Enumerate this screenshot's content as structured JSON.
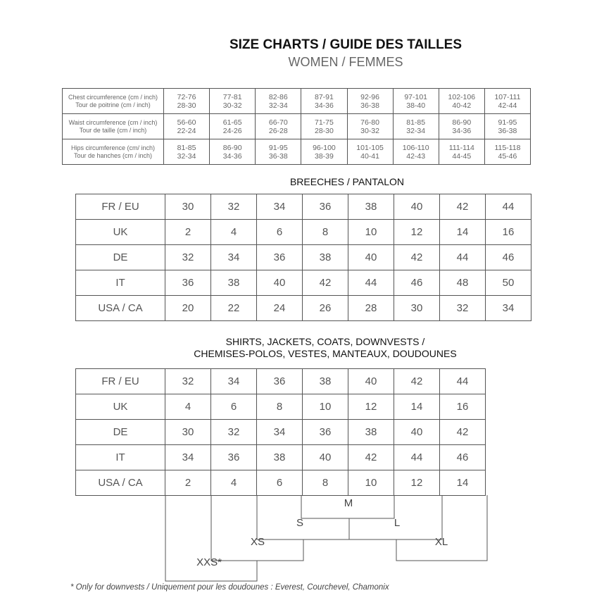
{
  "header": {
    "title": "SIZE CHARTS / GUIDE DES TAILLES",
    "subtitle": "WOMEN / FEMMES"
  },
  "measurements": {
    "rows": [
      {
        "label_en": "Chest circumference (cm / inch)",
        "label_fr": "Tour de poitrine (cm / inch)",
        "values": [
          [
            "72-76",
            "28-30"
          ],
          [
            "77-81",
            "30-32"
          ],
          [
            "82-86",
            "32-34"
          ],
          [
            "87-91",
            "34-36"
          ],
          [
            "92-96",
            "36-38"
          ],
          [
            "97-101",
            "38-40"
          ],
          [
            "102-106",
            "40-42"
          ],
          [
            "107-111",
            "42-44"
          ]
        ]
      },
      {
        "label_en": "Waist circumference (cm / inch)",
        "label_fr": "Tour de taille (cm / inch)",
        "values": [
          [
            "56-60",
            "22-24"
          ],
          [
            "61-65",
            "24-26"
          ],
          [
            "66-70",
            "26-28"
          ],
          [
            "71-75",
            "28-30"
          ],
          [
            "76-80",
            "30-32"
          ],
          [
            "81-85",
            "32-34"
          ],
          [
            "86-90",
            "34-36"
          ],
          [
            "91-95",
            "36-38"
          ]
        ]
      },
      {
        "label_en": "Hips circumference (cm/ inch)",
        "label_fr": "Tour de hanches (cm / inch)",
        "values": [
          [
            "81-85",
            "32-34"
          ],
          [
            "86-90",
            "34-36"
          ],
          [
            "91-95",
            "36-38"
          ],
          [
            "96-100",
            "38-39"
          ],
          [
            "101-105",
            "40-41"
          ],
          [
            "106-110",
            "42-43"
          ],
          [
            "111-114",
            "44-45"
          ],
          [
            "115-118",
            "45-46"
          ]
        ]
      }
    ]
  },
  "breeches": {
    "title": "BREECHES / PANTALON",
    "rows": [
      {
        "label": "FR / EU",
        "values": [
          "30",
          "32",
          "34",
          "36",
          "38",
          "40",
          "42",
          "44"
        ]
      },
      {
        "label": "UK",
        "values": [
          "2",
          "4",
          "6",
          "8",
          "10",
          "12",
          "14",
          "16"
        ]
      },
      {
        "label": "DE",
        "values": [
          "32",
          "34",
          "36",
          "38",
          "40",
          "42",
          "44",
          "46"
        ]
      },
      {
        "label": "IT",
        "values": [
          "36",
          "38",
          "40",
          "42",
          "44",
          "46",
          "48",
          "50"
        ]
      },
      {
        "label": "USA / CA",
        "values": [
          "20",
          "22",
          "24",
          "26",
          "28",
          "30",
          "32",
          "34"
        ]
      }
    ]
  },
  "shirts": {
    "title_line1": "SHIRTS, JACKETS, COATS, DOWNVESTS /",
    "title_line2": "CHEMISES-POLOS, VESTES, MANTEAUX, DOUDOUNES",
    "rows": [
      {
        "label": "FR / EU",
        "values": [
          "32",
          "34",
          "36",
          "38",
          "40",
          "42",
          "44"
        ]
      },
      {
        "label": "UK",
        "values": [
          "4",
          "6",
          "8",
          "10",
          "12",
          "14",
          "16"
        ]
      },
      {
        "label": "DE",
        "values": [
          "30",
          "32",
          "34",
          "36",
          "38",
          "40",
          "42"
        ]
      },
      {
        "label": "IT",
        "values": [
          "34",
          "36",
          "38",
          "40",
          "42",
          "44",
          "46"
        ]
      },
      {
        "label": "USA / CA",
        "values": [
          "2",
          "4",
          "6",
          "8",
          "10",
          "12",
          "14"
        ]
      }
    ],
    "letter_sizes": {
      "xxs": "XXS*",
      "xs": "XS",
      "s": "S",
      "m": "M",
      "l": "L",
      "xl": "XL"
    }
  },
  "footnote": "* Only for downvests / Uniquement pour les doudounes : Everest, Courchevel, Chamonix"
}
